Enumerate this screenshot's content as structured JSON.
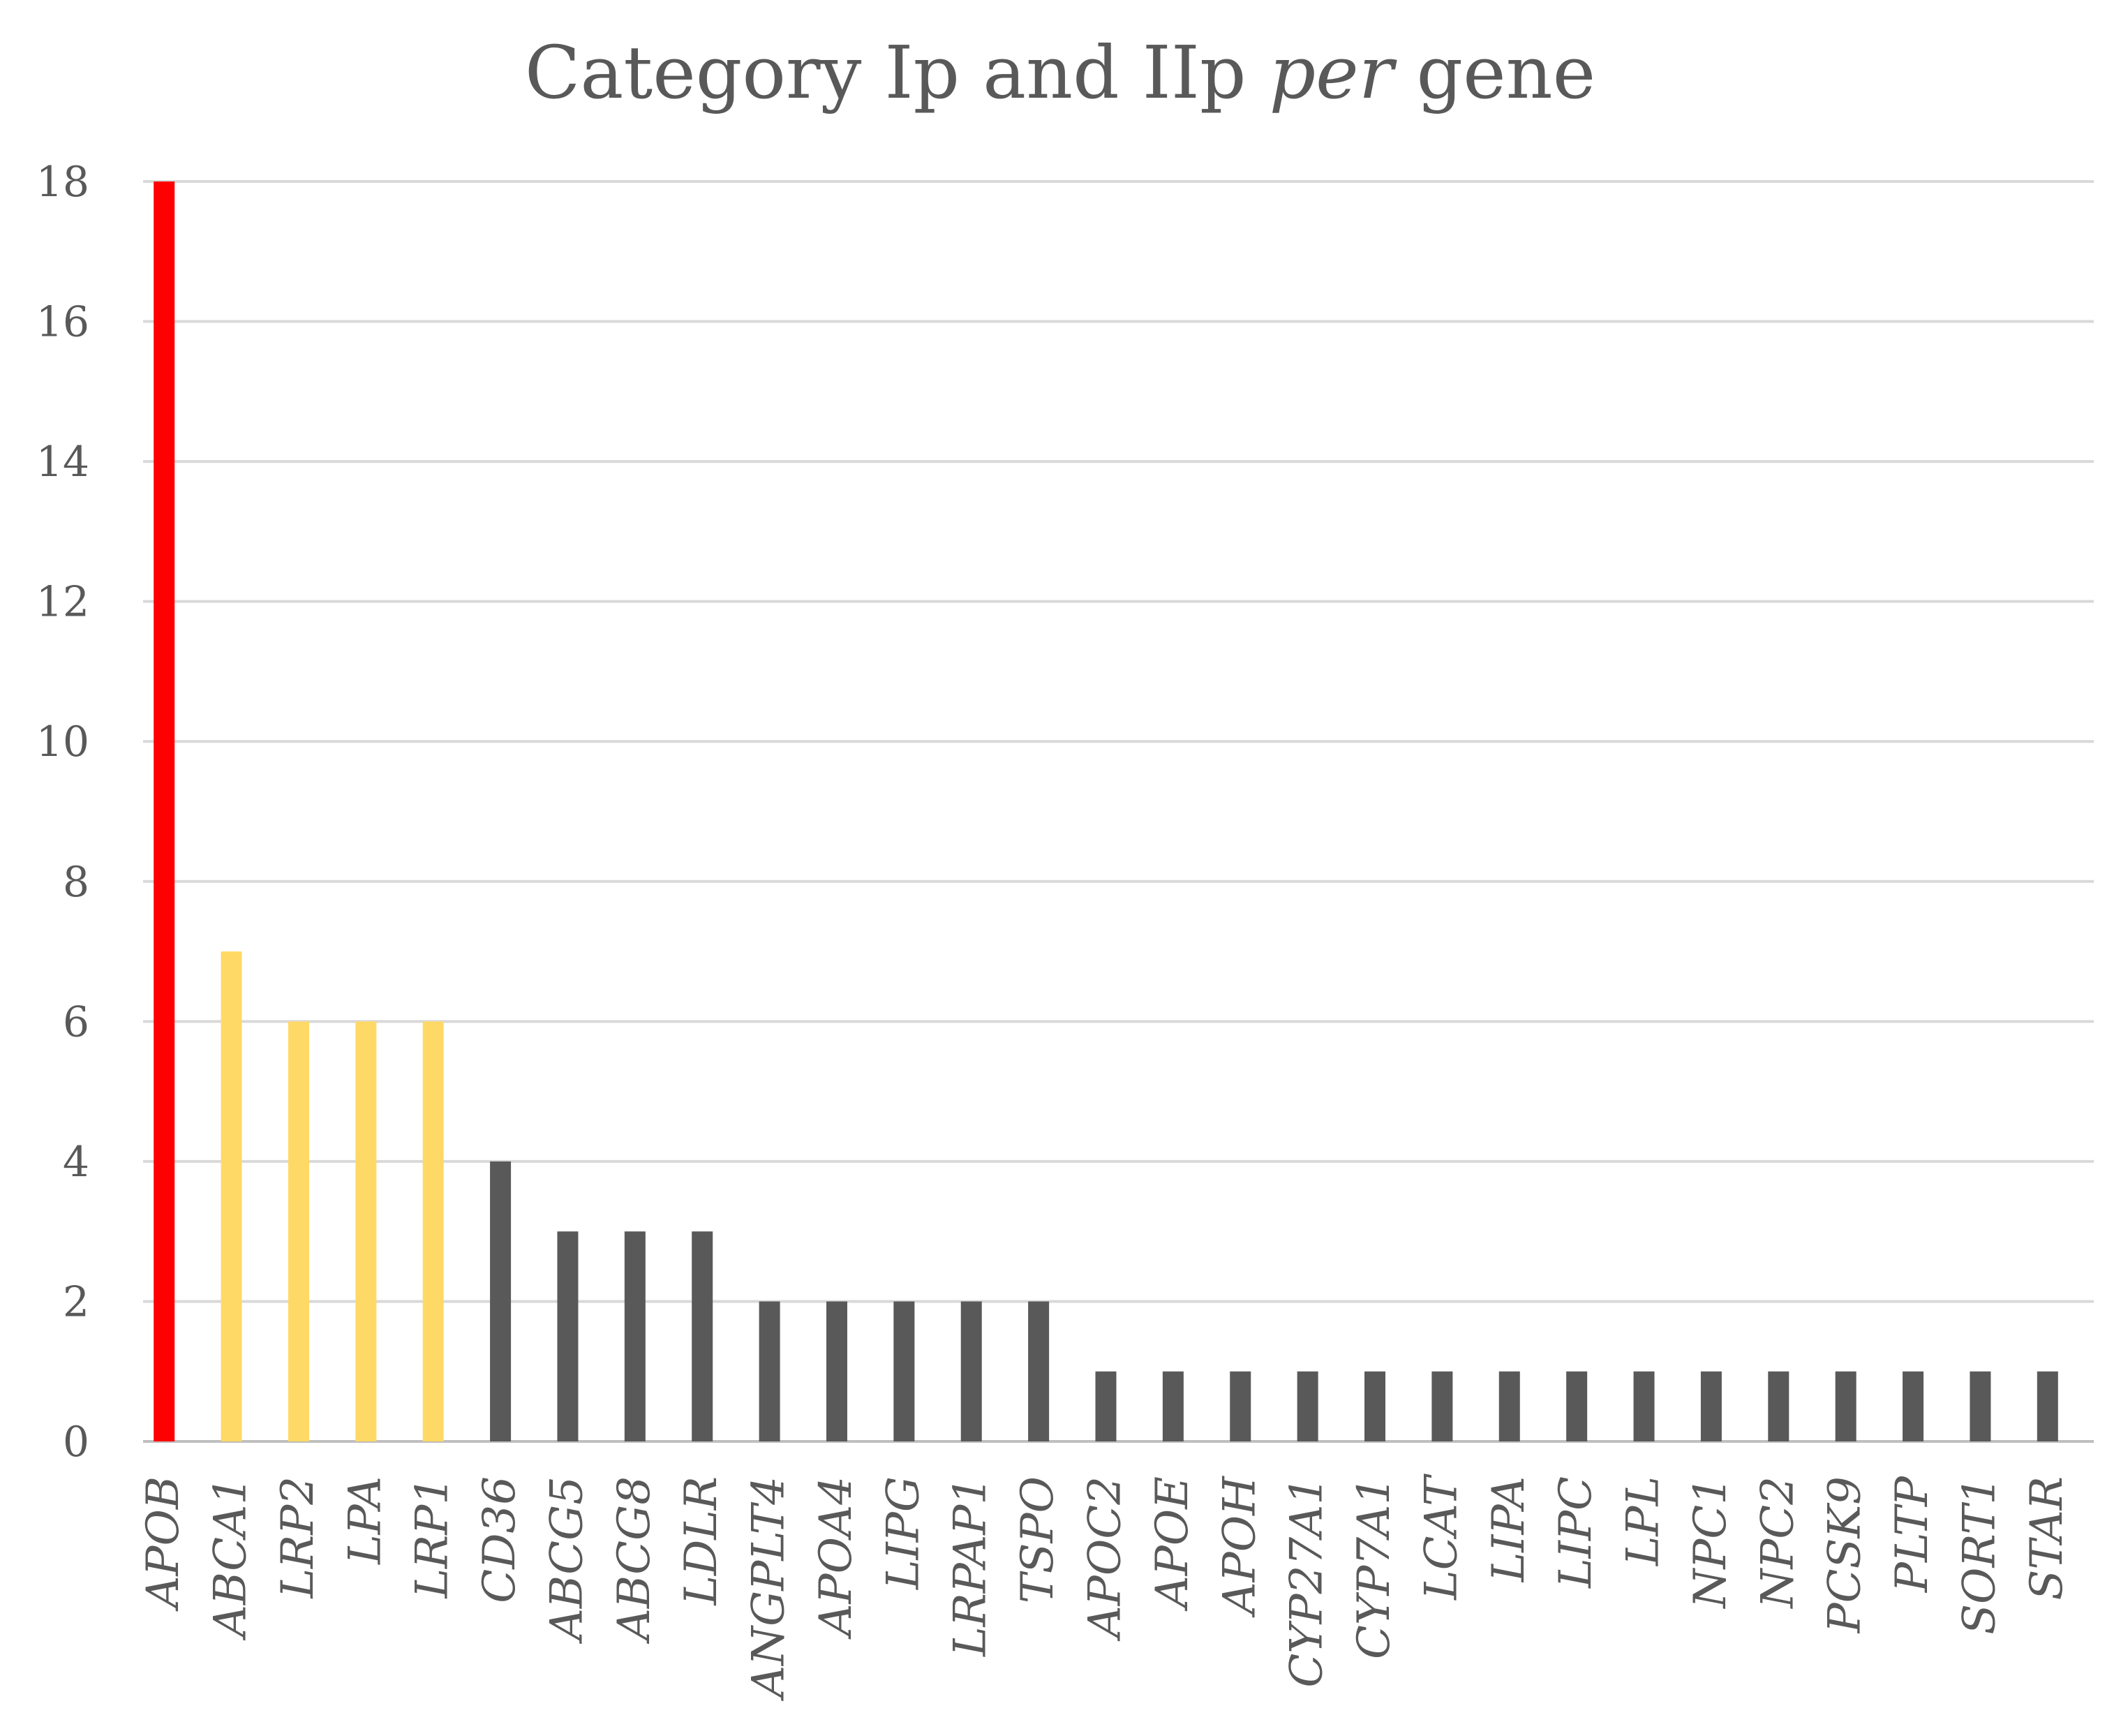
{
  "chart_data": {
    "type": "bar",
    "title": {
      "parts": [
        {
          "text": "Category Ip and IIp ",
          "italic": false
        },
        {
          "text": "per",
          "italic": true
        },
        {
          "text": " gene",
          "italic": false
        }
      ]
    },
    "xlabel": "",
    "ylabel": "",
    "ylim": [
      0,
      18
    ],
    "yticks": [
      0,
      2,
      4,
      6,
      8,
      10,
      12,
      14,
      16,
      18
    ],
    "grid": true,
    "categories": [
      "APOB",
      "ABCA1",
      "LRP2",
      "LPA",
      "LRP1",
      "CD36",
      "ABCG5",
      "ABCG8",
      "LDLR",
      "ANGPLT4",
      "APOA4",
      "LIPG",
      "LRPAP1",
      "TSPO",
      "APOC2",
      "APOE",
      "APOH",
      "CYP27A1",
      "CYP7A1",
      "LCAT",
      "LIPA",
      "LIPC",
      "LPL",
      "NPC1",
      "NPC2",
      "PCSK9",
      "PLTP",
      "SORT1",
      "STAR"
    ],
    "values": [
      18,
      7,
      6,
      6,
      6,
      4,
      3,
      3,
      3,
      2,
      2,
      2,
      2,
      2,
      1,
      1,
      1,
      1,
      1,
      1,
      1,
      1,
      1,
      1,
      1,
      1,
      1,
      1,
      1
    ],
    "colors": {
      "high": "#ff0000",
      "medium": "#ffd966",
      "low": "#595959"
    },
    "bar_color_groups": [
      "high",
      "medium",
      "medium",
      "medium",
      "medium",
      "low",
      "low",
      "low",
      "low",
      "low",
      "low",
      "low",
      "low",
      "low",
      "low",
      "low",
      "low",
      "low",
      "low",
      "low",
      "low",
      "low",
      "low",
      "low",
      "low",
      "low",
      "low",
      "low",
      "low"
    ]
  }
}
